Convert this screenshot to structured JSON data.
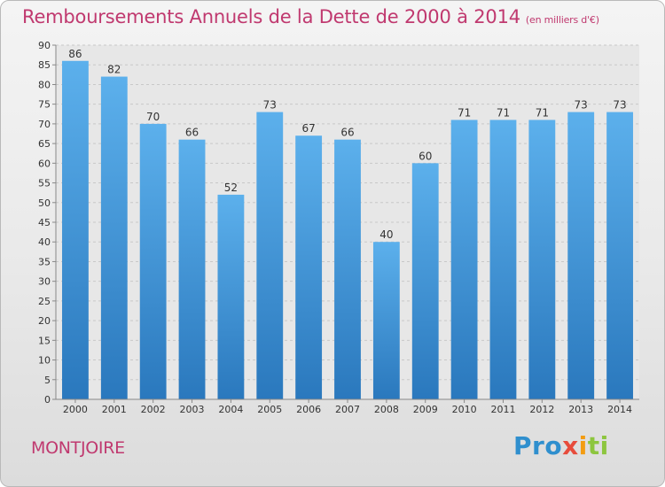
{
  "chart_data": {
    "type": "bar",
    "title": "Remboursements Annuels de la Dette de 2000 à 2014",
    "subtitle": "(en milliers d'€)",
    "categories": [
      "2000",
      "2001",
      "2002",
      "2003",
      "2004",
      "2005",
      "2006",
      "2007",
      "2008",
      "2009",
      "2010",
      "2011",
      "2012",
      "2013",
      "2014"
    ],
    "values": [
      86,
      82,
      70,
      66,
      52,
      73,
      67,
      66,
      40,
      60,
      71,
      71,
      71,
      73,
      73
    ],
    "ylim": [
      0,
      90
    ],
    "yticks": [
      0,
      5,
      10,
      15,
      20,
      25,
      30,
      35,
      40,
      45,
      50,
      55,
      60,
      65,
      70,
      75,
      80,
      85,
      90
    ],
    "grid": true,
    "bar_color": "#3d8fd0"
  },
  "commune": "MONTJOIRE",
  "logo": {
    "text": "Proxiti",
    "colors": [
      "#2f8fce",
      "#f39c12",
      "#e74c3c",
      "#8dc63f"
    ]
  }
}
